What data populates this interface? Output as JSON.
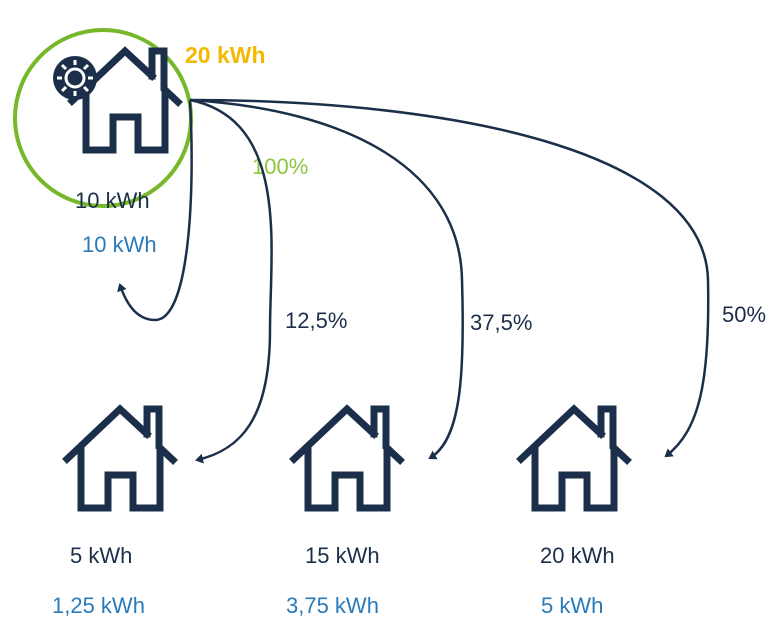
{
  "source": {
    "production": "20 kWh",
    "consumption": "10 kWh",
    "received": "10 kWh",
    "share": "100%"
  },
  "targets": [
    {
      "share": "12,5%",
      "consumption": "5 kWh",
      "received": "1,25 kWh"
    },
    {
      "share": "37,5%",
      "consumption": "15 kWh",
      "received": "3,75 kWh"
    },
    {
      "share": "50%",
      "consumption": "20 kWh",
      "received": "5 kWh"
    }
  ]
}
